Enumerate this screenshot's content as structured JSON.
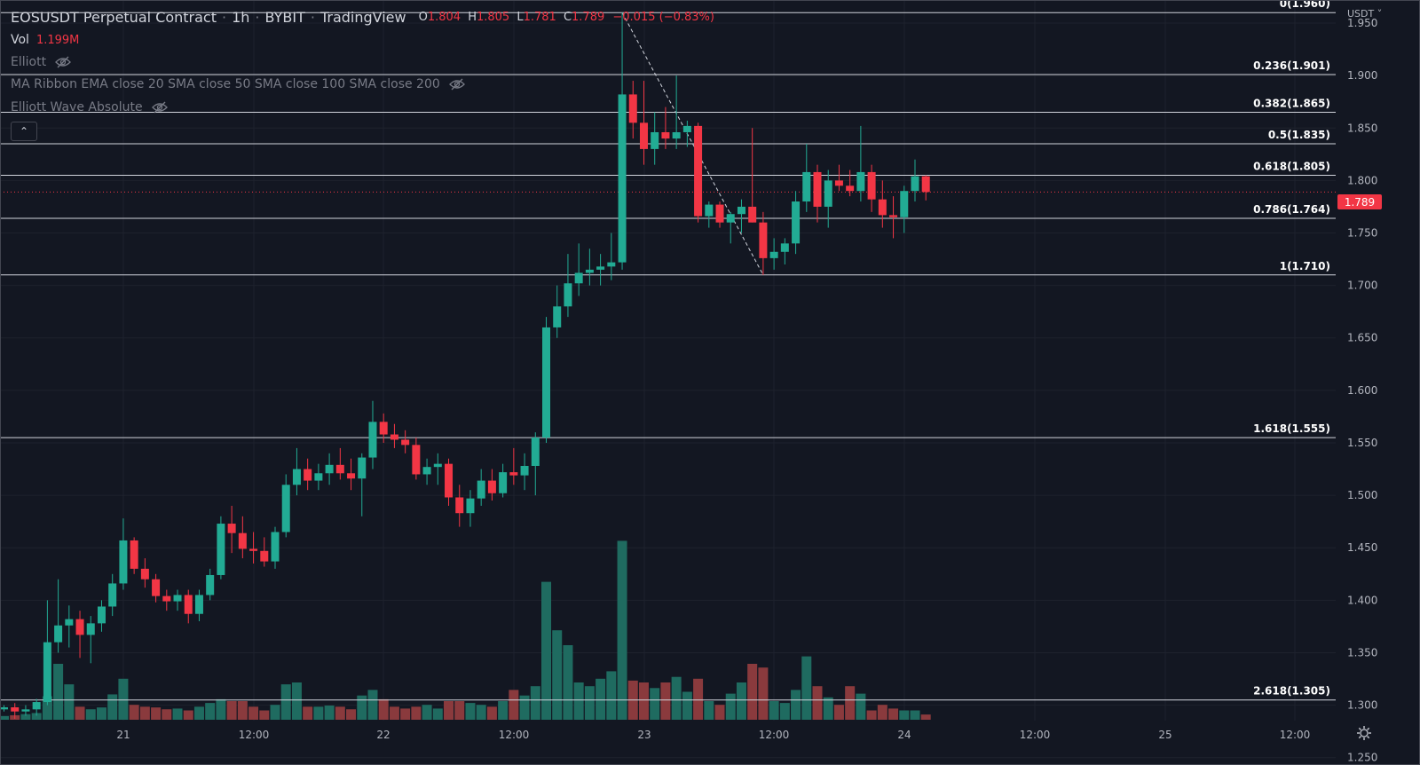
{
  "header": {
    "symbol": "EOSUSDT Perpetual Contract",
    "interval": "1h",
    "exchange": "BYBIT",
    "source": "TradingView",
    "ohlc": {
      "o_label": "O",
      "o": "1.804",
      "h_label": "H",
      "h": "1.805",
      "l_label": "L",
      "l": "1.781",
      "c_label": "C",
      "c": "1.789",
      "change": "−0.015 (−0.83%)"
    }
  },
  "indicators": [
    {
      "label": "Vol",
      "value": "1.199M"
    },
    {
      "label": "Elliott"
    },
    {
      "label": "MA Ribbon EMA close 20 SMA close 50 SMA close 100 SMA close 200"
    },
    {
      "label": "Elliott Wave Absolute"
    }
  ],
  "currency": "USDT",
  "last_price": "1.789",
  "colors": {
    "up": "#22ab94",
    "down": "#f23645",
    "vol_up": "#1f6b60",
    "vol_down": "#8a3a3d",
    "background": "#131722",
    "grid": "#1e222d"
  },
  "chart_data": {
    "type": "candlestick",
    "y_axis": {
      "ticks": [
        "1.950",
        "1.900",
        "1.850",
        "1.800",
        "1.750",
        "1.700",
        "1.650",
        "1.600",
        "1.550",
        "1.500",
        "1.450",
        "1.400",
        "1.350",
        "1.300",
        "1.250"
      ],
      "range": [
        1.243,
        1.972
      ]
    },
    "x_axis": {
      "ticks": [
        "21",
        "12:00",
        "22",
        "12:00",
        "23",
        "12:00",
        "24",
        "12:00",
        "25",
        "12:00"
      ]
    },
    "fib_levels": [
      {
        "label": "0(1.960)",
        "price": 1.96
      },
      {
        "label": "0.236(1.901)",
        "price": 1.901
      },
      {
        "label": "0.382(1.865)",
        "price": 1.865
      },
      {
        "label": "0.5(1.835)",
        "price": 1.835
      },
      {
        "label": "0.618(1.805)",
        "price": 1.805
      },
      {
        "label": "0.786(1.764)",
        "price": 1.764
      },
      {
        "label": "1(1.710)",
        "price": 1.71
      },
      {
        "label": "1.618(1.555)",
        "price": 1.555
      },
      {
        "label": "2.618(1.305)",
        "price": 1.305
      }
    ],
    "candles": [
      [
        1.296,
        1.3,
        1.294,
        1.298,
        1.0
      ],
      [
        1.298,
        1.302,
        1.287,
        1.294,
        1.2
      ],
      [
        1.294,
        1.3,
        1.29,
        1.296,
        1.5
      ],
      [
        1.296,
        1.306,
        1.29,
        1.303,
        1.8
      ],
      [
        1.303,
        1.4,
        1.3,
        1.36,
        6.3
      ],
      [
        1.36,
        1.42,
        1.35,
        1.376,
        15.0
      ],
      [
        1.376,
        1.395,
        1.355,
        1.382,
        9.5
      ],
      [
        1.382,
        1.39,
        1.345,
        1.367,
        3.5
      ],
      [
        1.367,
        1.385,
        1.34,
        1.378,
        2.8
      ],
      [
        1.378,
        1.4,
        1.37,
        1.394,
        3.3
      ],
      [
        1.394,
        1.425,
        1.385,
        1.416,
        6.8
      ],
      [
        1.416,
        1.478,
        1.41,
        1.457,
        11.0
      ],
      [
        1.457,
        1.46,
        1.425,
        1.43,
        4.0
      ],
      [
        1.43,
        1.44,
        1.412,
        1.42,
        3.5
      ],
      [
        1.42,
        1.425,
        1.398,
        1.404,
        3.3
      ],
      [
        1.404,
        1.41,
        1.39,
        1.399,
        2.8
      ],
      [
        1.399,
        1.41,
        1.39,
        1.405,
        3.0
      ],
      [
        1.405,
        1.41,
        1.378,
        1.387,
        2.5
      ],
      [
        1.387,
        1.41,
        1.38,
        1.405,
        3.5
      ],
      [
        1.405,
        1.43,
        1.4,
        1.424,
        4.5
      ],
      [
        1.424,
        1.48,
        1.42,
        1.473,
        5.5
      ],
      [
        1.473,
        1.49,
        1.445,
        1.464,
        5.0
      ],
      [
        1.464,
        1.48,
        1.44,
        1.449,
        5.0
      ],
      [
        1.449,
        1.465,
        1.435,
        1.447,
        3.5
      ],
      [
        1.447,
        1.46,
        1.432,
        1.437,
        2.5
      ],
      [
        1.437,
        1.47,
        1.43,
        1.465,
        4.0
      ],
      [
        1.465,
        1.52,
        1.46,
        1.51,
        9.5
      ],
      [
        1.51,
        1.545,
        1.5,
        1.525,
        10.0
      ],
      [
        1.525,
        1.535,
        1.505,
        1.514,
        3.5
      ],
      [
        1.514,
        1.53,
        1.505,
        1.521,
        3.5
      ],
      [
        1.521,
        1.54,
        1.51,
        1.529,
        3.8
      ],
      [
        1.529,
        1.545,
        1.515,
        1.521,
        3.5
      ],
      [
        1.521,
        1.535,
        1.505,
        1.516,
        2.8
      ],
      [
        1.516,
        1.54,
        1.48,
        1.536,
        6.5
      ],
      [
        1.536,
        1.59,
        1.525,
        1.57,
        8.0
      ],
      [
        1.57,
        1.578,
        1.55,
        1.558,
        5.5
      ],
      [
        1.558,
        1.568,
        1.545,
        1.553,
        3.5
      ],
      [
        1.553,
        1.562,
        1.54,
        1.548,
        3.0
      ],
      [
        1.548,
        1.555,
        1.515,
        1.52,
        3.5
      ],
      [
        1.52,
        1.535,
        1.51,
        1.527,
        4.0
      ],
      [
        1.527,
        1.54,
        1.51,
        1.53,
        3.0
      ],
      [
        1.53,
        1.535,
        1.49,
        1.498,
        5.0
      ],
      [
        1.498,
        1.51,
        1.47,
        1.483,
        5.0
      ],
      [
        1.483,
        1.505,
        1.47,
        1.497,
        4.5
      ],
      [
        1.497,
        1.525,
        1.49,
        1.514,
        4.0
      ],
      [
        1.514,
        1.525,
        1.495,
        1.502,
        3.5
      ],
      [
        1.502,
        1.53,
        1.498,
        1.522,
        5.0
      ],
      [
        1.522,
        1.545,
        1.51,
        1.519,
        8.0
      ],
      [
        1.519,
        1.54,
        1.505,
        1.528,
        6.5
      ],
      [
        1.528,
        1.56,
        1.5,
        1.555,
        9.0
      ],
      [
        1.555,
        1.67,
        1.55,
        1.66,
        37.0
      ],
      [
        1.66,
        1.7,
        1.65,
        1.68,
        24.0
      ],
      [
        1.68,
        1.73,
        1.67,
        1.702,
        20.0
      ],
      [
        1.702,
        1.74,
        1.69,
        1.712,
        10.0
      ],
      [
        1.712,
        1.735,
        1.7,
        1.715,
        9.0
      ],
      [
        1.715,
        1.73,
        1.7,
        1.718,
        11.0
      ],
      [
        1.718,
        1.75,
        1.705,
        1.722,
        13.0
      ],
      [
        1.722,
        1.96,
        1.715,
        1.882,
        48.0
      ],
      [
        1.882,
        1.895,
        1.84,
        1.855,
        10.5
      ],
      [
        1.855,
        1.895,
        1.815,
        1.83,
        10.0
      ],
      [
        1.83,
        1.865,
        1.815,
        1.846,
        8.5
      ],
      [
        1.846,
        1.87,
        1.83,
        1.84,
        10.0
      ],
      [
        1.84,
        1.9,
        1.83,
        1.846,
        11.5
      ],
      [
        1.846,
        1.857,
        1.832,
        1.852,
        7.5
      ],
      [
        1.852,
        1.855,
        1.76,
        1.766,
        11.0
      ],
      [
        1.766,
        1.78,
        1.755,
        1.777,
        5.0
      ],
      [
        1.777,
        1.78,
        1.755,
        1.76,
        4.0
      ],
      [
        1.76,
        1.77,
        1.74,
        1.768,
        7.0
      ],
      [
        1.768,
        1.782,
        1.75,
        1.775,
        10.0
      ],
      [
        1.775,
        1.85,
        1.76,
        1.76,
        15.0
      ],
      [
        1.76,
        1.77,
        1.71,
        1.726,
        14.0
      ],
      [
        1.726,
        1.745,
        1.715,
        1.732,
        5.0
      ],
      [
        1.732,
        1.745,
        1.72,
        1.74,
        4.5
      ],
      [
        1.74,
        1.79,
        1.73,
        1.78,
        8.0
      ],
      [
        1.78,
        1.835,
        1.77,
        1.808,
        17.0
      ],
      [
        1.808,
        1.815,
        1.76,
        1.775,
        9.0
      ],
      [
        1.775,
        1.81,
        1.755,
        1.8,
        6.0
      ],
      [
        1.8,
        1.815,
        1.79,
        1.795,
        4.0
      ],
      [
        1.795,
        1.81,
        1.785,
        1.79,
        9.0
      ],
      [
        1.79,
        1.852,
        1.78,
        1.808,
        7.0
      ],
      [
        1.808,
        1.815,
        1.77,
        1.782,
        2.5
      ],
      [
        1.782,
        1.8,
        1.755,
        1.767,
        4.0
      ],
      [
        1.767,
        1.785,
        1.745,
        1.765,
        3.0
      ],
      [
        1.765,
        1.795,
        1.75,
        1.79,
        2.5
      ],
      [
        1.79,
        1.82,
        1.78,
        1.804,
        2.5
      ],
      [
        1.804,
        1.805,
        1.781,
        1.789,
        1.4
      ]
    ]
  }
}
